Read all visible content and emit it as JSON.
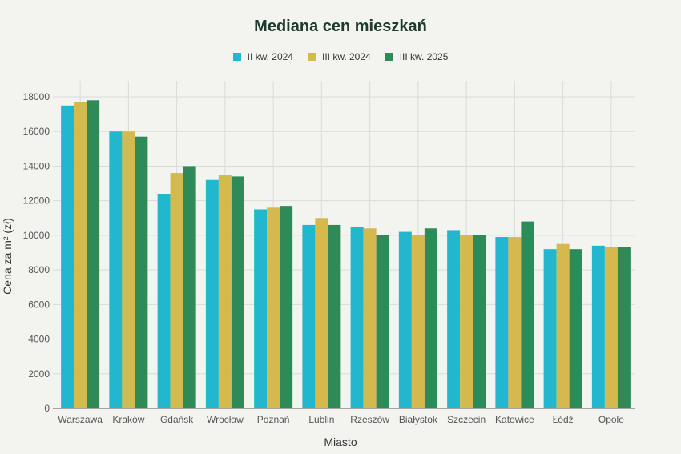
{
  "chart_data": {
    "type": "bar",
    "title": "Mediana cen mieszkań",
    "xlabel": "Miasto",
    "ylabel": "Cena za m² (zł)",
    "ylim": [
      0,
      18000
    ],
    "yticks": [
      0,
      2000,
      4000,
      6000,
      8000,
      10000,
      12000,
      14000,
      16000,
      18000
    ],
    "grid": true,
    "legend_position": "top-center",
    "categories": [
      "Warszawa",
      "Kraków",
      "Gdańsk",
      "Wrocław",
      "Poznań",
      "Lublin",
      "Rzeszów",
      "Białystok",
      "Szczecin",
      "Katowice",
      "Łódź",
      "Opole"
    ],
    "series": [
      {
        "name": "II kw. 2024",
        "color": "#21b8cf",
        "values": [
          17500,
          16000,
          12400,
          13200,
          11500,
          10600,
          10500,
          10200,
          10300,
          9900,
          9200,
          9400
        ]
      },
      {
        "name": "III kw. 2024",
        "color": "#d4b94c",
        "values": [
          17700,
          16000,
          13600,
          13500,
          11600,
          11000,
          10400,
          10000,
          10000,
          9900,
          9500,
          9300
        ]
      },
      {
        "name": "III kw. 2025",
        "color": "#2e8b57",
        "values": [
          17800,
          15700,
          14000,
          13400,
          11700,
          10600,
          10000,
          10400,
          10000,
          10800,
          9200,
          9300
        ]
      }
    ]
  }
}
